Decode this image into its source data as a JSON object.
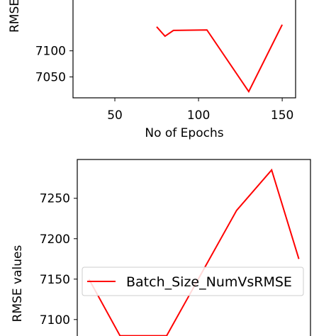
{
  "chart_data": [
    {
      "type": "line",
      "xlabel": "No of Epochs",
      "ylabel": "RMSE",
      "xlim": [
        25,
        158
      ],
      "ylim": [
        7010,
        7200
      ],
      "xticks": [
        "50",
        "100",
        "150"
      ],
      "xtick_values": [
        50,
        100,
        150
      ],
      "yticks": [
        "7050",
        "7100"
      ],
      "ytick_values": [
        7050,
        7100
      ],
      "grid": false,
      "series": [
        {
          "color": "#ff0000",
          "x": [
            75,
            80,
            85,
            105,
            130,
            150
          ],
          "y": [
            7146,
            7128,
            7139,
            7140,
            7022,
            7150
          ]
        }
      ]
    },
    {
      "type": "line",
      "xlabel": "",
      "ylabel": "RMSE values",
      "xlim": [
        0,
        6
      ],
      "ylim": [
        7070,
        7298
      ],
      "yticks": [
        "7100",
        "7150",
        "7200",
        "7250"
      ],
      "ytick_values": [
        7100,
        7150,
        7200,
        7250
      ],
      "grid": false,
      "legend": {
        "placement": "center-right",
        "entries": [
          "Batch_Size_NumVsRMSE"
        ]
      },
      "series": [
        {
          "name": "Batch_Size_NumVsRMSE",
          "color": "#ff0000",
          "x": [
            0.3,
            1.1,
            2.3,
            4.1,
            5.0,
            5.7
          ],
          "y": [
            7150,
            7080,
            7080,
            7235,
            7285,
            7175
          ]
        }
      ]
    }
  ]
}
